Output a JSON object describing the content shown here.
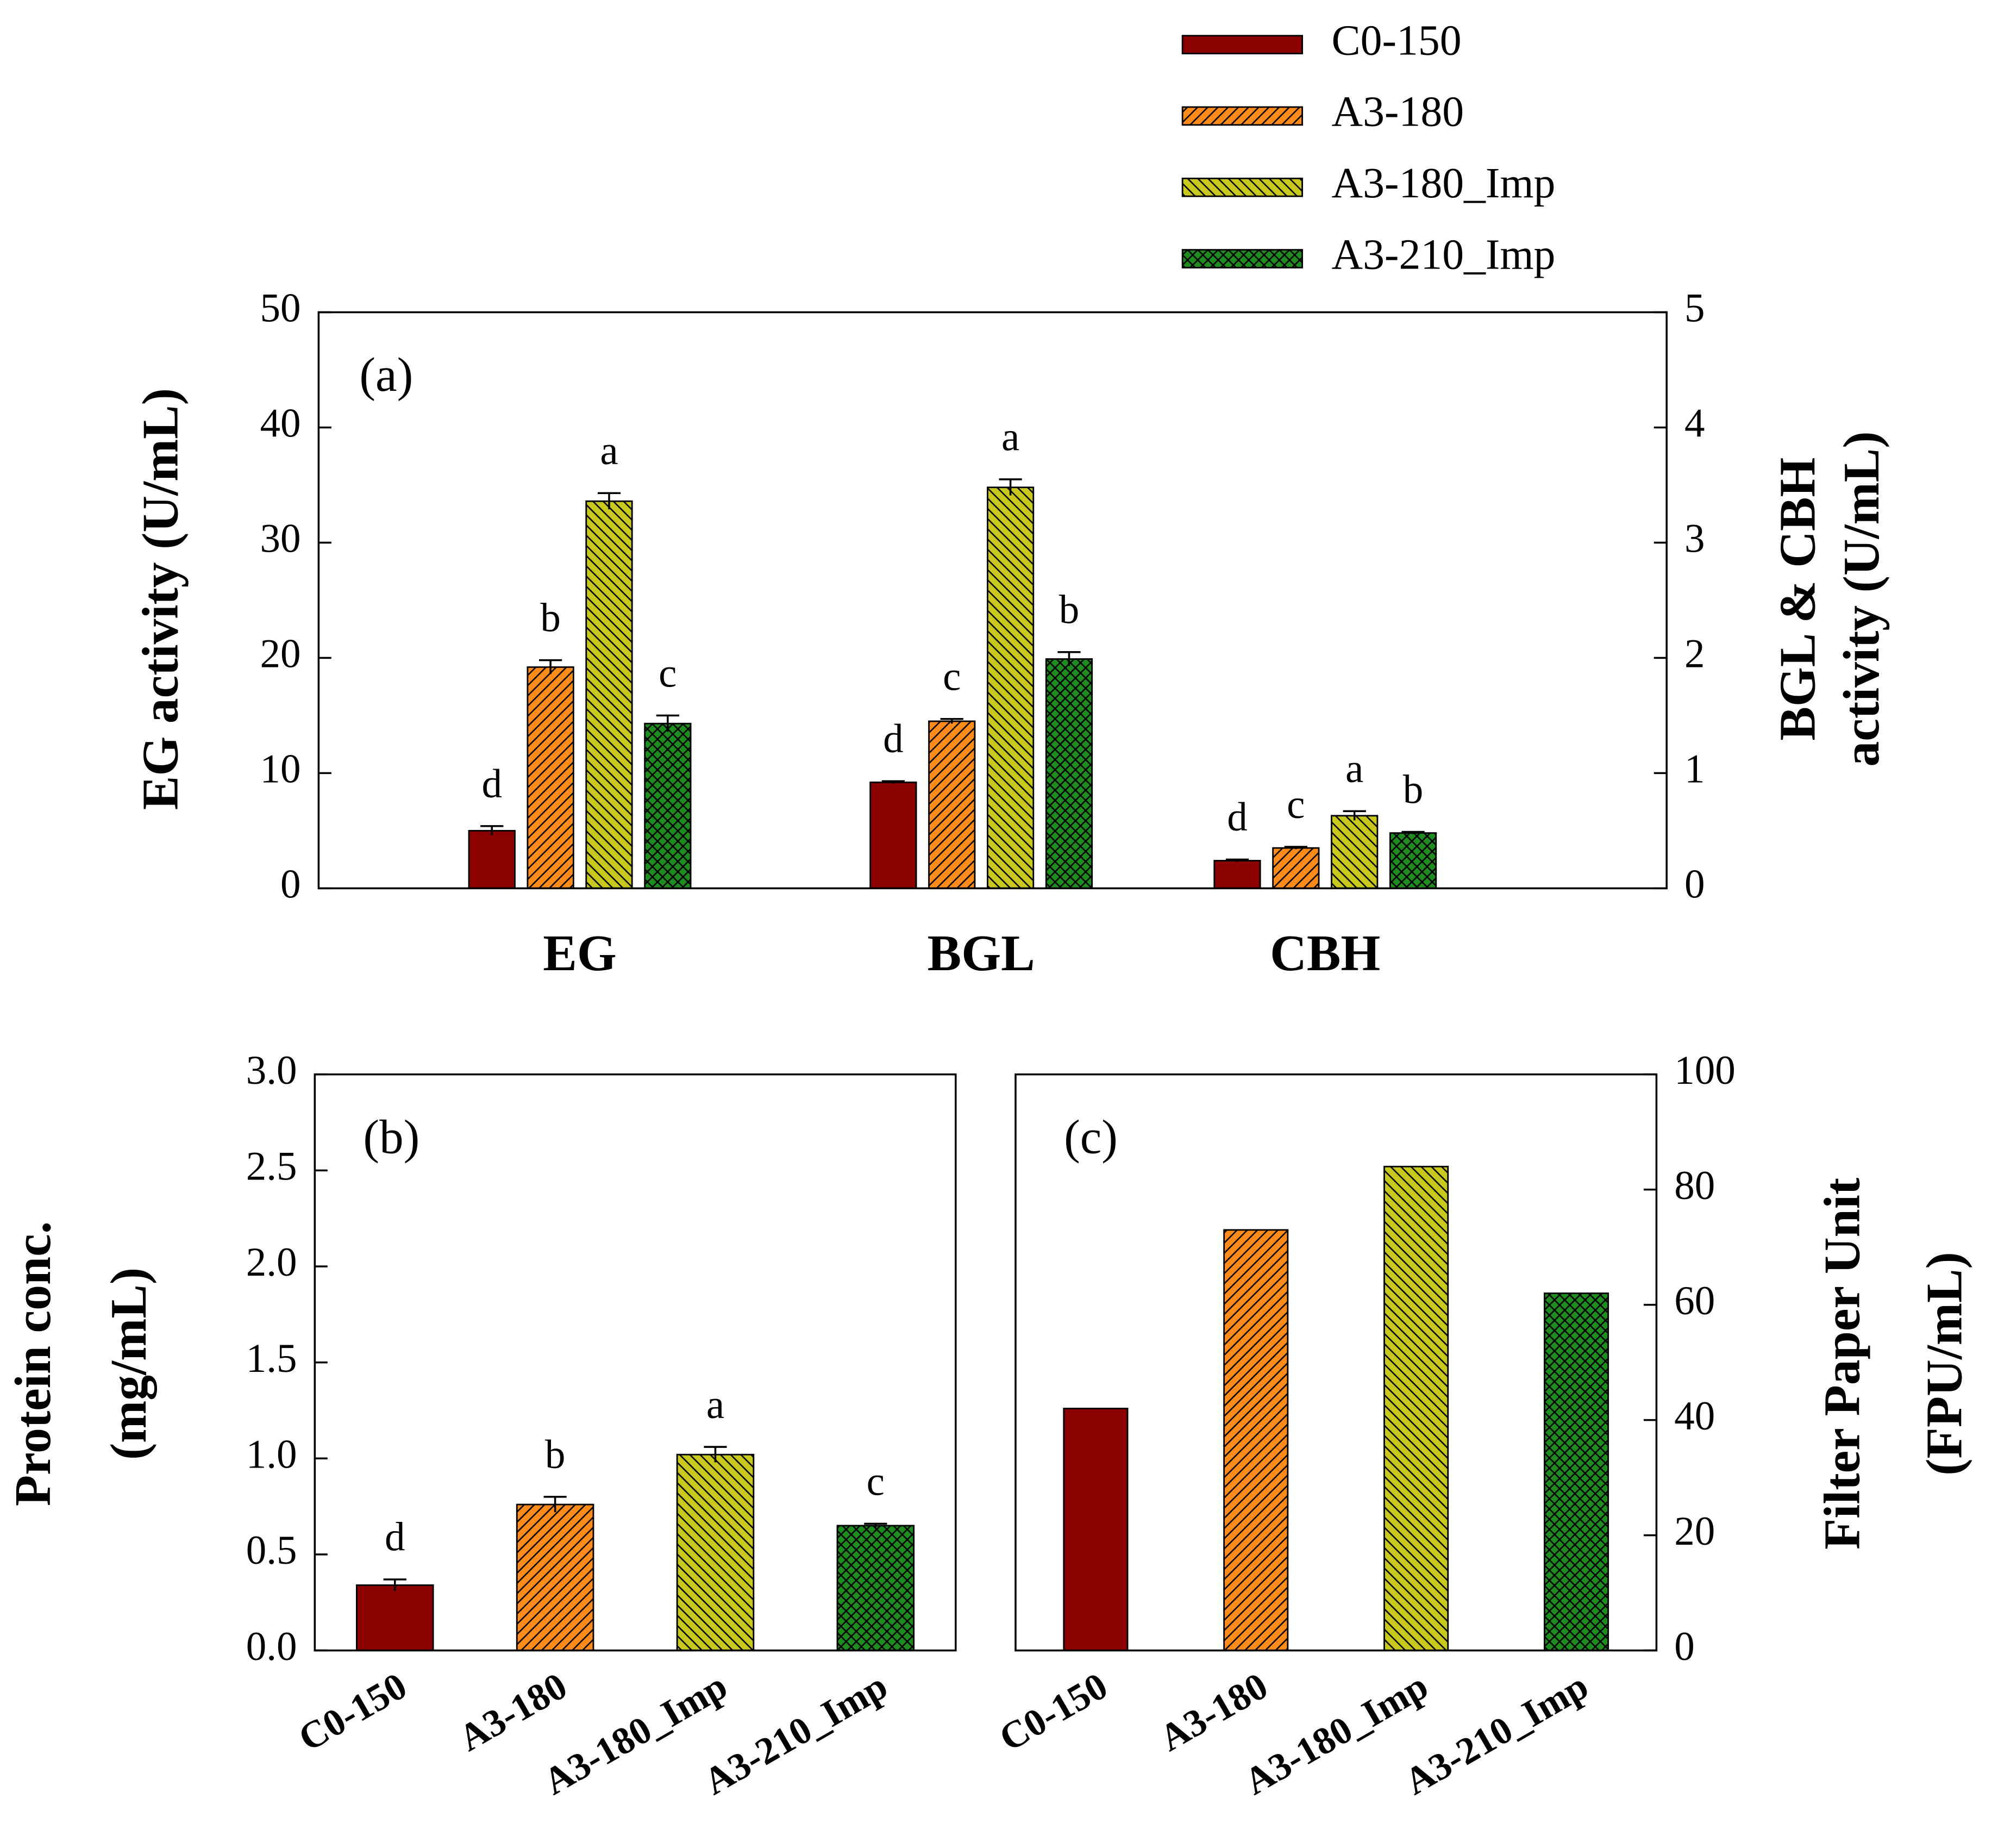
{
  "chart_data": [
    {
      "type": "grouped-bar",
      "annotation": "(a)",
      "categories": [
        "EG",
        "BGL",
        "CBH"
      ],
      "category_axis": [
        "y",
        "y2",
        "y2"
      ],
      "ylabel": "EG activity (U/mL)",
      "y2label": [
        "BGL & CBH",
        "activity (U/mL)"
      ],
      "ylim": [
        0,
        50
      ],
      "yticks": [
        0,
        10,
        20,
        30,
        40,
        50
      ],
      "y2lim": [
        0,
        5
      ],
      "y2ticks": [
        0,
        1,
        2,
        3,
        4,
        5
      ],
      "series": [
        {
          "name": "C0-150",
          "color": "#8b0000",
          "pattern": "solid",
          "values": [
            5.0,
            0.92,
            0.24
          ],
          "errors": [
            0.4,
            0.01,
            0.01
          ],
          "labels": [
            "d",
            "d",
            "d"
          ]
        },
        {
          "name": "A3-180",
          "color": "#ff8c1a",
          "pattern": "forward-hatch",
          "values": [
            19.2,
            1.45,
            0.35
          ],
          "errors": [
            0.6,
            0.02,
            0.01
          ],
          "labels": [
            "b",
            "c",
            "c"
          ]
        },
        {
          "name": "A3-180_Imp",
          "color": "#c8c81e",
          "pattern": "back-hatch",
          "values": [
            33.6,
            3.48,
            0.63
          ],
          "errors": [
            0.7,
            0.07,
            0.04
          ],
          "labels": [
            "a",
            "a",
            "a"
          ]
        },
        {
          "name": "A3-210_Imp",
          "color": "#1e8c1e",
          "pattern": "crosshatch",
          "values": [
            14.3,
            1.99,
            0.48
          ],
          "errors": [
            0.7,
            0.06,
            0.01
          ],
          "labels": [
            "c",
            "b",
            "b"
          ]
        }
      ]
    },
    {
      "type": "bar",
      "annotation": "(b)",
      "categories": [
        "C0-150",
        "A3-180",
        "A3-180_Imp",
        "A3-210_Imp"
      ],
      "colors": [
        "#8b0000",
        "#ff8c1a",
        "#c8c81e",
        "#1e8c1e"
      ],
      "patterns": [
        "solid",
        "forward-hatch",
        "back-hatch",
        "crosshatch"
      ],
      "values": [
        0.34,
        0.76,
        1.02,
        0.65
      ],
      "errors": [
        0.03,
        0.04,
        0.04,
        0.01
      ],
      "labels": [
        "d",
        "b",
        "a",
        "c"
      ],
      "ylabel": [
        "Protein conc.",
        "(mg/mL)"
      ],
      "ylim": [
        0,
        3
      ],
      "yticks": [
        {
          "value": 0,
          "label": "0.0"
        },
        0.5,
        {
          "value": 1,
          "label": "1.0"
        },
        1.5,
        {
          "value": 2,
          "label": "2.0"
        },
        2.5,
        {
          "value": 3,
          "label": "3.0"
        }
      ]
    },
    {
      "type": "bar",
      "annotation": "(c)",
      "axis_side": "right",
      "categories": [
        "C0-150",
        "A3-180",
        "A3-180_Imp",
        "A3-210_Imp"
      ],
      "colors": [
        "#8b0000",
        "#ff8c1a",
        "#c8c81e",
        "#1e8c1e"
      ],
      "patterns": [
        "solid",
        "forward-hatch",
        "back-hatch",
        "crosshatch"
      ],
      "values": [
        42,
        73,
        84,
        62
      ],
      "ylabel": [
        "Filter Paper Unit",
        "(FPU/mL)"
      ],
      "ylim": [
        0,
        100
      ],
      "yticks": [
        0,
        20,
        40,
        60,
        80,
        100
      ]
    }
  ]
}
